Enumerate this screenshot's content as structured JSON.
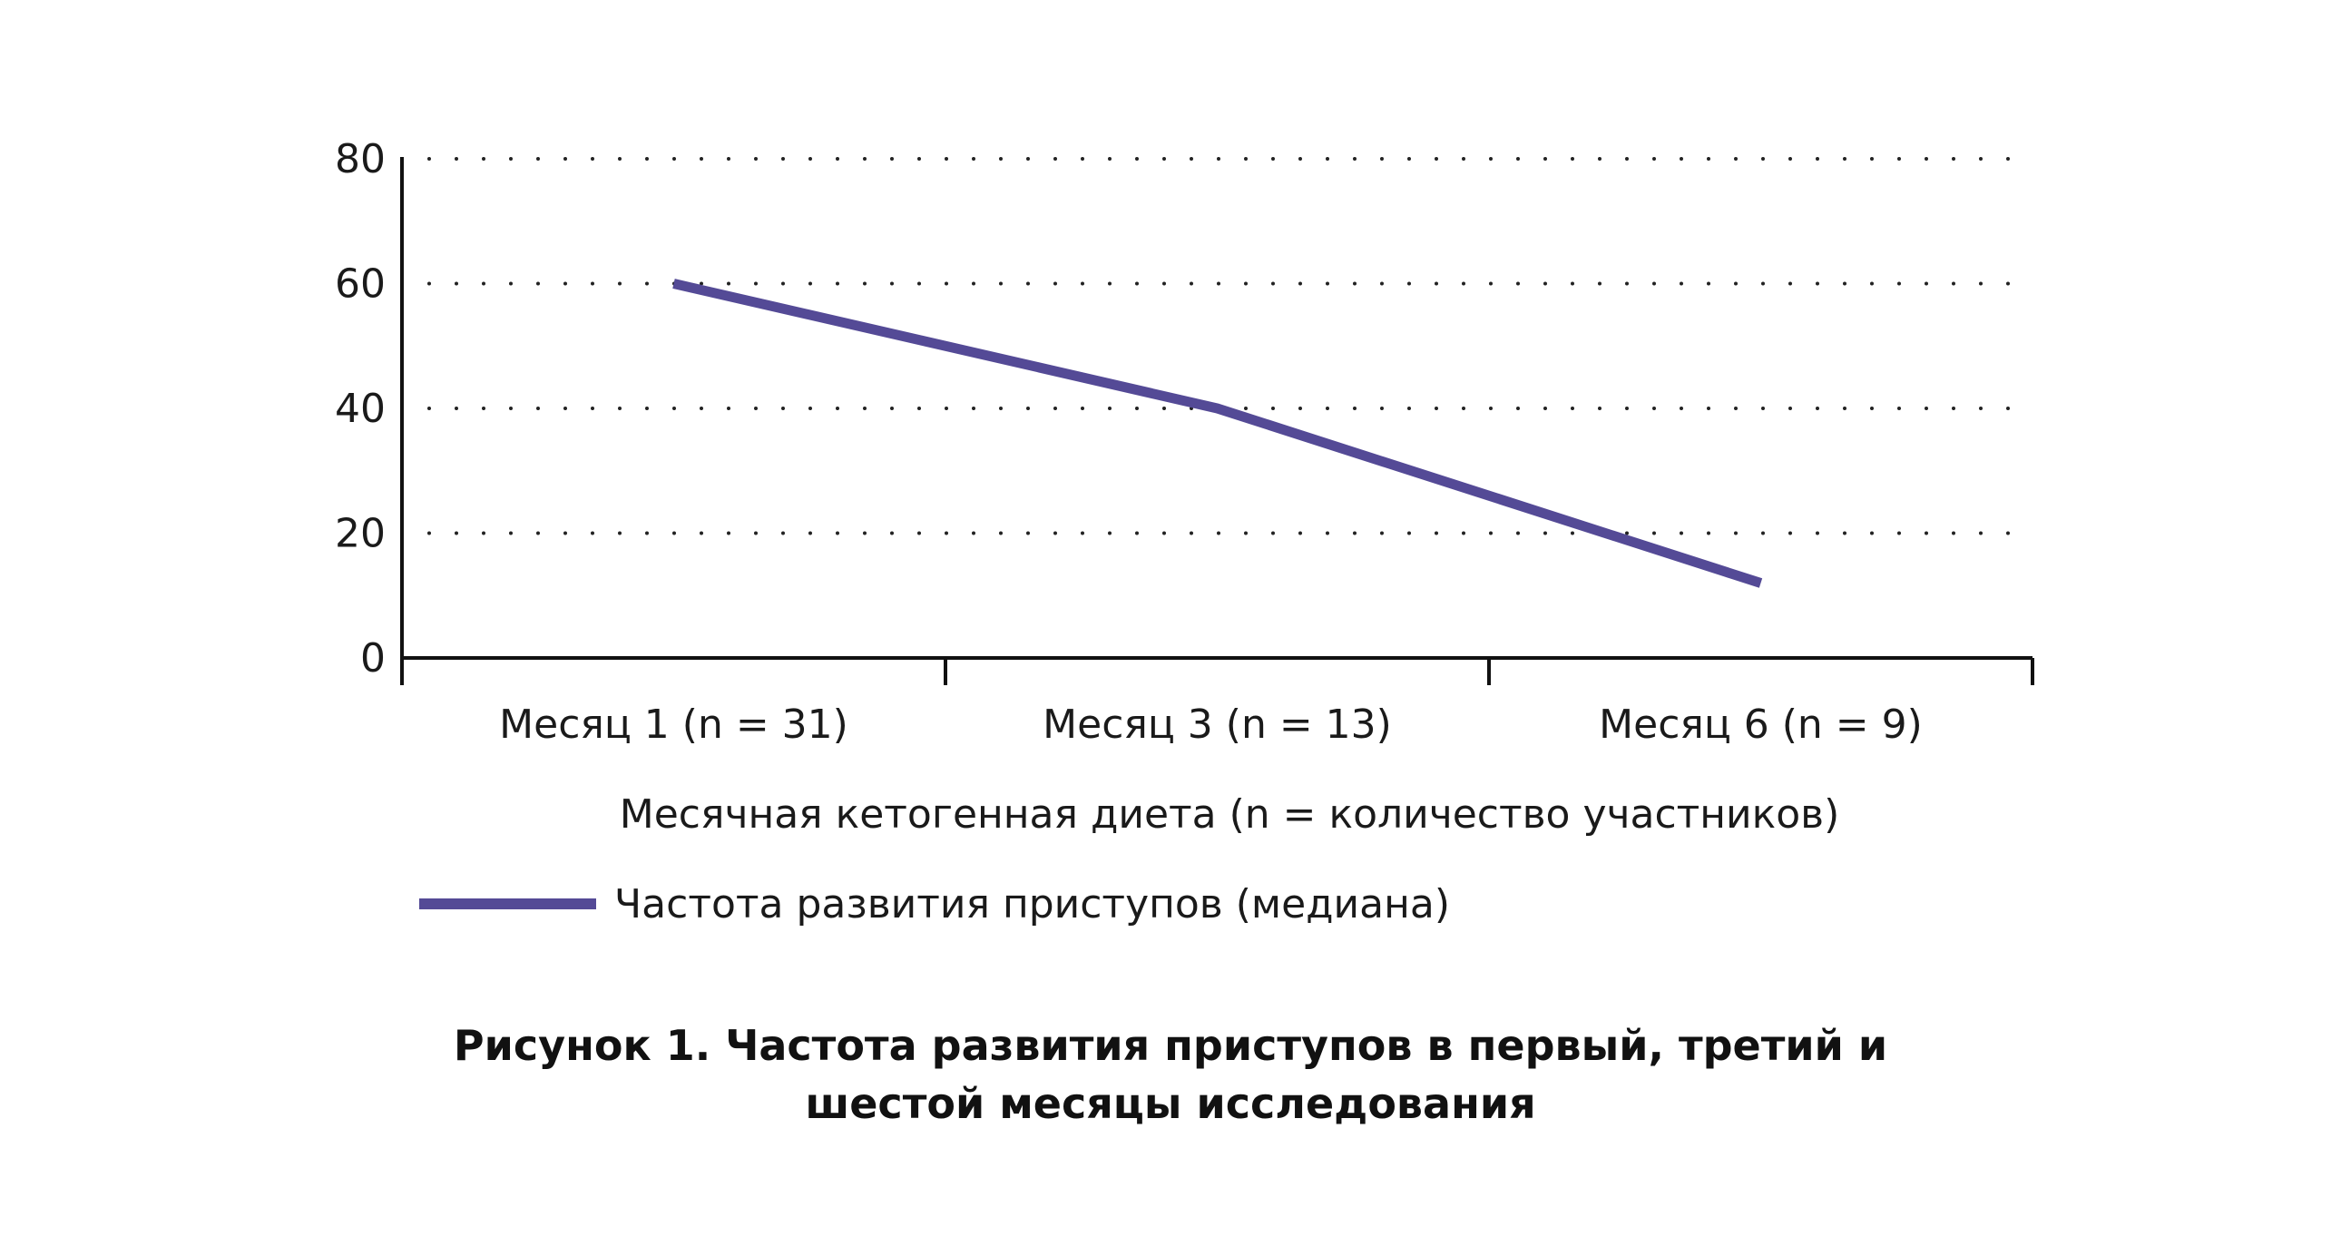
{
  "chart_data": {
    "type": "line",
    "categories": [
      "Месяц 1 (n = 31)",
      "Месяц 3 (n = 13)",
      "Месяц 6 (n = 9)"
    ],
    "series": [
      {
        "name": "Частота развития приступов (медиана)",
        "values": [
          60,
          40,
          12
        ],
        "color": "#544a96"
      }
    ],
    "xlabel": "Месячная кетогенная диета (n = количество участников)",
    "ylabel": "",
    "ylim": [
      0,
      80
    ],
    "yticks": [
      0,
      20,
      40,
      60,
      80
    ],
    "grid": "dotted horizontal",
    "legend": "bottom-left"
  },
  "caption": {
    "line1": "Рисунок 1. Частота развития приступов в первый, третий и",
    "line2": "шестой месяцы исследования"
  }
}
